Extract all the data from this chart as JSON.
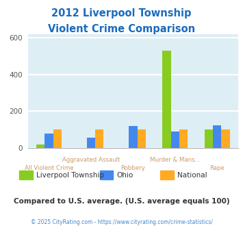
{
  "title_line1": "2012 Liverpool Township",
  "title_line2": "Violent Crime Comparison",
  "title_color": "#1a6bbf",
  "categories": [
    "All Violent Crime",
    "Aggravated Assault",
    "Robbery",
    "Murder & Mans...",
    "Rape"
  ],
  "series": {
    "Liverpool Township": [
      20,
      0,
      0,
      530,
      100
    ],
    "Ohio": [
      80,
      55,
      120,
      90,
      125
    ],
    "National": [
      100,
      100,
      100,
      100,
      100
    ]
  },
  "colors": {
    "Liverpool Township": "#88cc22",
    "Ohio": "#4488ee",
    "National": "#ffaa22"
  },
  "ylim": [
    0,
    620
  ],
  "yticks": [
    0,
    200,
    400,
    600
  ],
  "plot_bg": "#deeef5",
  "grid_color": "#ffffff",
  "xlabel_color": "#cc9966",
  "note_text": "Compared to U.S. average. (U.S. average equals 100)",
  "note_color": "#333333",
  "footer_text": "© 2025 CityRating.com - https://www.cityrating.com/crime-statistics/",
  "footer_color": "#4488cc",
  "legend_text_color": "#333333",
  "top_labels": [
    "",
    "Aggravated Assault",
    "",
    "Murder & Mans...",
    ""
  ],
  "bot_labels": [
    "All Violent Crime",
    "",
    "Robbery",
    "",
    "Rape"
  ]
}
